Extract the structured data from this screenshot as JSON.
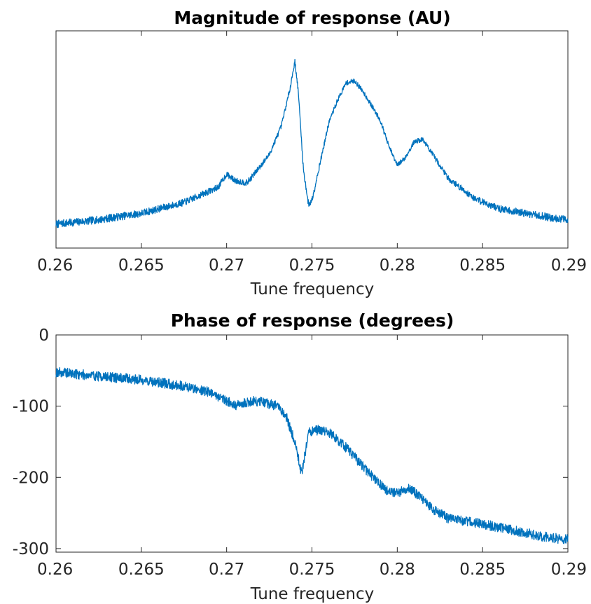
{
  "chart_data": [
    {
      "type": "line",
      "title": "Magnitude of response (AU)",
      "xlabel": "Tune frequency",
      "ylabel": "",
      "xlim": [
        0.26,
        0.29
      ],
      "ylim": [
        0,
        1
      ],
      "xticks": [
        0.26,
        0.265,
        0.27,
        0.275,
        0.28,
        0.285,
        0.29
      ],
      "xtick_labels": [
        "0.26",
        "0.265",
        "0.27",
        "0.275",
        "0.28",
        "0.285",
        "0.29"
      ],
      "yticks": [],
      "ytick_labels": [],
      "grid": false,
      "color": "#0072bd",
      "x": [
        0.26,
        0.2625,
        0.265,
        0.2675,
        0.2695,
        0.27,
        0.2705,
        0.2712,
        0.2725,
        0.2732,
        0.2737,
        0.274,
        0.2742,
        0.2745,
        0.2748,
        0.275,
        0.2755,
        0.276,
        0.2765,
        0.277,
        0.2775,
        0.278,
        0.279,
        0.2795,
        0.28,
        0.2805,
        0.281,
        0.2815,
        0.282,
        0.283,
        0.2845,
        0.286,
        0.2875,
        0.289,
        0.29
      ],
      "y": [
        0.11,
        0.13,
        0.16,
        0.21,
        0.28,
        0.34,
        0.31,
        0.3,
        0.43,
        0.56,
        0.73,
        0.86,
        0.72,
        0.36,
        0.2,
        0.22,
        0.4,
        0.58,
        0.68,
        0.76,
        0.77,
        0.72,
        0.59,
        0.47,
        0.38,
        0.42,
        0.49,
        0.5,
        0.44,
        0.32,
        0.23,
        0.18,
        0.16,
        0.14,
        0.13
      ],
      "noise": 0.018
    },
    {
      "type": "line",
      "title": "Phase of response (degrees)",
      "xlabel": "Tune frequency",
      "ylabel": "",
      "xlim": [
        0.26,
        0.29
      ],
      "ylim": [
        -305,
        0
      ],
      "xticks": [
        0.26,
        0.265,
        0.27,
        0.275,
        0.28,
        0.285,
        0.29
      ],
      "xtick_labels": [
        "0.26",
        "0.265",
        "0.27",
        "0.275",
        "0.28",
        "0.285",
        "0.29"
      ],
      "yticks": [
        0,
        -100,
        -200,
        -300
      ],
      "ytick_labels": [
        "0",
        "-100",
        "-200",
        "-300"
      ],
      "grid": false,
      "color": "#0072bd",
      "x": [
        0.26,
        0.2625,
        0.265,
        0.2675,
        0.269,
        0.27,
        0.2705,
        0.271,
        0.2715,
        0.272,
        0.273,
        0.2735,
        0.274,
        0.2744,
        0.2748,
        0.2755,
        0.276,
        0.277,
        0.278,
        0.279,
        0.2795,
        0.28,
        0.2806,
        0.281,
        0.282,
        0.283,
        0.2845,
        0.286,
        0.2875,
        0.289,
        0.29
      ],
      "y": [
        -52,
        -58,
        -63,
        -72,
        -80,
        -92,
        -100,
        -96,
        -93,
        -94,
        -100,
        -115,
        -150,
        -195,
        -137,
        -133,
        -137,
        -158,
        -185,
        -210,
        -220,
        -222,
        -215,
        -220,
        -243,
        -258,
        -264,
        -270,
        -278,
        -285,
        -287
      ],
      "noise": 7
    }
  ]
}
